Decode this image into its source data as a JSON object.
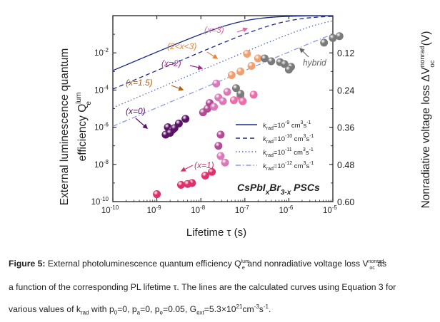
{
  "figure": {
    "caption_lead": "Figure 5:",
    "caption_line1": "External photoluminescence quantum efficiency Q",
    "caption_line1_sup": "lum",
    "caption_line1_sub": "e",
    "caption_line1b": " and nonradiative voltage loss V",
    "caption_line1b_sup": "nonrad",
    "caption_line1b_sub": "oc",
    "caption_line1c": " as",
    "caption_line2": "a function of the corresponding PL lifetime τ. The lines are the calculated curves using Equation 3 for",
    "caption_line3": "various values of k",
    "caption_line3_sub": "rad",
    "caption_line3b": " with p",
    "caption_line3b_sub": "0",
    "caption_line3c": "=0, p",
    "caption_line3c_sub": "a",
    "caption_line3d": "=0, p",
    "caption_line3d_sub": "e",
    "caption_line3e": "=0.05, G",
    "caption_line3e_sub": "ext",
    "caption_line3f": "=5.3×10",
    "caption_line3f_sup": "21",
    "caption_line3g": "cm",
    "caption_line3g_sup": "-3",
    "caption_line3h": "s",
    "caption_line3h_sup": "-1",
    "caption_line3i": "."
  },
  "chart_data": {
    "type": "scatter",
    "title": "CsPbI_xBr_3-x PSCs",
    "title_parts": {
      "base1": "CsPbI",
      "sub1": "x",
      "base2": "Br",
      "sub2": "3-x",
      "base3": " PSCs"
    },
    "xlabel": "Lifetime τ (s)",
    "xscale": "log",
    "xlim": [
      1e-10,
      1e-05
    ],
    "xticks": [
      {
        "v": -10,
        "label_base": "10",
        "label_exp": "-10"
      },
      {
        "v": -9,
        "label_base": "10",
        "label_exp": "-9"
      },
      {
        "v": -8,
        "label_base": "10",
        "label_exp": "-8"
      },
      {
        "v": -7,
        "label_base": "10",
        "label_exp": "-7"
      },
      {
        "v": -6,
        "label_base": "10",
        "label_exp": "-6"
      },
      {
        "v": -5,
        "label_base": "10",
        "label_exp": "-5"
      }
    ],
    "ylabel_left_line1": "External luminescence quantum",
    "ylabel_left_line2": "efficiency Q",
    "ylabel_left_sup": "lum",
    "ylabel_left_sub": "e",
    "yscale": "log",
    "ylim": [
      1e-10,
      1
    ],
    "yticks": [
      {
        "v": -2,
        "label_base": "10",
        "label_exp": "-2"
      },
      {
        "v": -4,
        "label_base": "10",
        "label_exp": "-4"
      },
      {
        "v": -6,
        "label_base": "10",
        "label_exp": "-6"
      },
      {
        "v": -8,
        "label_base": "10",
        "label_exp": "-8"
      },
      {
        "v": -10,
        "label_base": "10",
        "label_exp": "-10"
      }
    ],
    "ylabel_right": "Nonradiative voltage loss ΔV",
    "ylabel_right_sup": "nonrad",
    "ylabel_right_sub": "oc",
    "ylabel_right_unit": " (V)",
    "yticks_right": [
      {
        "v": -2,
        "label": "0.12"
      },
      {
        "v": -4,
        "label": "0.24"
      },
      {
        "v": -6,
        "label": "0.36"
      },
      {
        "v": -8,
        "label": "0.48"
      },
      {
        "v": -10,
        "label": "0.60"
      }
    ],
    "lines": [
      {
        "name": "k_rad=10^-9 cm^3s^-1",
        "label_k": "k",
        "label_sub": "rad",
        "label_eq": "=10",
        "label_exp": "-9",
        "label_unit": " cm",
        "label_unit_sup": "3",
        "label_s": "s",
        "label_s_sup": "-1",
        "style": "solid",
        "color": "#1b2a8a",
        "offset": 0
      },
      {
        "name": "k_rad=10^-10 cm^3s^-1",
        "label_k": "k",
        "label_sub": "rad",
        "label_eq": "=10",
        "label_exp": "-10",
        "label_unit": " cm",
        "label_unit_sup": "3",
        "label_s": "s",
        "label_s_sup": "-1",
        "style": "dash",
        "color": "#1b2a8a",
        "offset": 1
      },
      {
        "name": "k_rad=10^-11 cm^3s^-1",
        "label_k": "k",
        "label_sub": "rad",
        "label_eq": "=10",
        "label_exp": "-11",
        "label_unit": " cm",
        "label_unit_sup": "3",
        "label_s": "s",
        "label_s_sup": "-1",
        "style": "dot",
        "color": "#4a68c8",
        "offset": 2
      },
      {
        "name": "k_rad=10^-12 cm^3s^-1",
        "label_k": "k",
        "label_sub": "rad",
        "label_eq": "=10",
        "label_exp": "-12",
        "label_unit": " cm",
        "label_unit_sup": "3",
        "label_s": "s",
        "label_s_sup": "-1",
        "style": "dashdot",
        "color": "#8a9ae0",
        "offset": 3
      }
    ],
    "groups": [
      {
        "label": "(x=0)",
        "color": "#5a1266",
        "label_color": "#5a1266",
        "points": [
          [
            -8.75,
            -6.0
          ],
          [
            -8.8,
            -6.4
          ],
          [
            -8.65,
            -6.15
          ],
          [
            -8.7,
            -6.3
          ],
          [
            -8.5,
            -5.8
          ],
          [
            -8.35,
            -5.55
          ],
          [
            -8.6,
            -6.05
          ]
        ]
      },
      {
        "label": "(x=1)",
        "color": "#e0306a",
        "label_color": "#d03470",
        "points": [
          [
            -9.0,
            -9.6
          ],
          [
            -8.45,
            -9.1
          ],
          [
            -8.2,
            -9.0
          ],
          [
            -7.9,
            -8.6
          ],
          [
            -7.75,
            -8.4
          ],
          [
            -8.3,
            -9.05
          ]
        ]
      },
      {
        "label": "(x=1.5)",
        "color": "#b24a95",
        "label_color": "#b06010",
        "points": [
          [
            -7.95,
            -5.2
          ],
          [
            -7.85,
            -5.0
          ],
          [
            -7.8,
            -4.7
          ],
          [
            -7.6,
            -7.0
          ],
          [
            -7.55,
            -6.4
          ]
        ]
      },
      {
        "label": "(x=2)",
        "color": "#d97ab8",
        "label_color": "#a0308a",
        "points": [
          [
            -7.65,
            -3.65
          ],
          [
            -7.6,
            -4.4
          ],
          [
            -7.4,
            -4.1
          ],
          [
            -7.5,
            -4.6
          ],
          [
            -7.7,
            -4.9
          ],
          [
            -7.55,
            -7.55
          ],
          [
            -7.45,
            -7.9
          ]
        ]
      },
      {
        "label": "(2<x<3)",
        "color": "#f0a070",
        "label_color": "#e8843a",
        "points": [
          [
            -7.3,
            -3.2
          ],
          [
            -7.1,
            -3.0
          ],
          [
            -6.85,
            -2.7
          ],
          [
            -6.7,
            -2.3
          ],
          [
            -6.95,
            -2.05
          ]
        ]
      },
      {
        "label": "(x=3)",
        "color": "#ec6ea8",
        "label_color": "#e26aa2",
        "points": [
          [
            -7.1,
            -4.35
          ],
          [
            -7.25,
            -4.55
          ],
          [
            -7.05,
            -4.6
          ],
          [
            -6.8,
            -4.25
          ]
        ]
      },
      {
        "label": "hybrid",
        "color": "#7a7a7a",
        "label_color": "#666666",
        "points": [
          [
            -6.55,
            -2.3
          ],
          [
            -6.2,
            -2.5
          ],
          [
            -6.1,
            -2.6
          ],
          [
            -5.95,
            -2.75
          ],
          [
            -5.2,
            -1.45
          ],
          [
            -5.0,
            -1.2
          ],
          [
            -4.85,
            -1.1
          ],
          [
            -6.4,
            -2.45
          ],
          [
            -6.0,
            -2.9
          ],
          [
            -7.1,
            -4.2
          ],
          [
            -7.2,
            -3.9
          ]
        ]
      }
    ],
    "legend_position": "right-middle"
  },
  "colors": {
    "text": "#222222",
    "axis": "#222222",
    "line_dark": "#1b2a8a"
  }
}
